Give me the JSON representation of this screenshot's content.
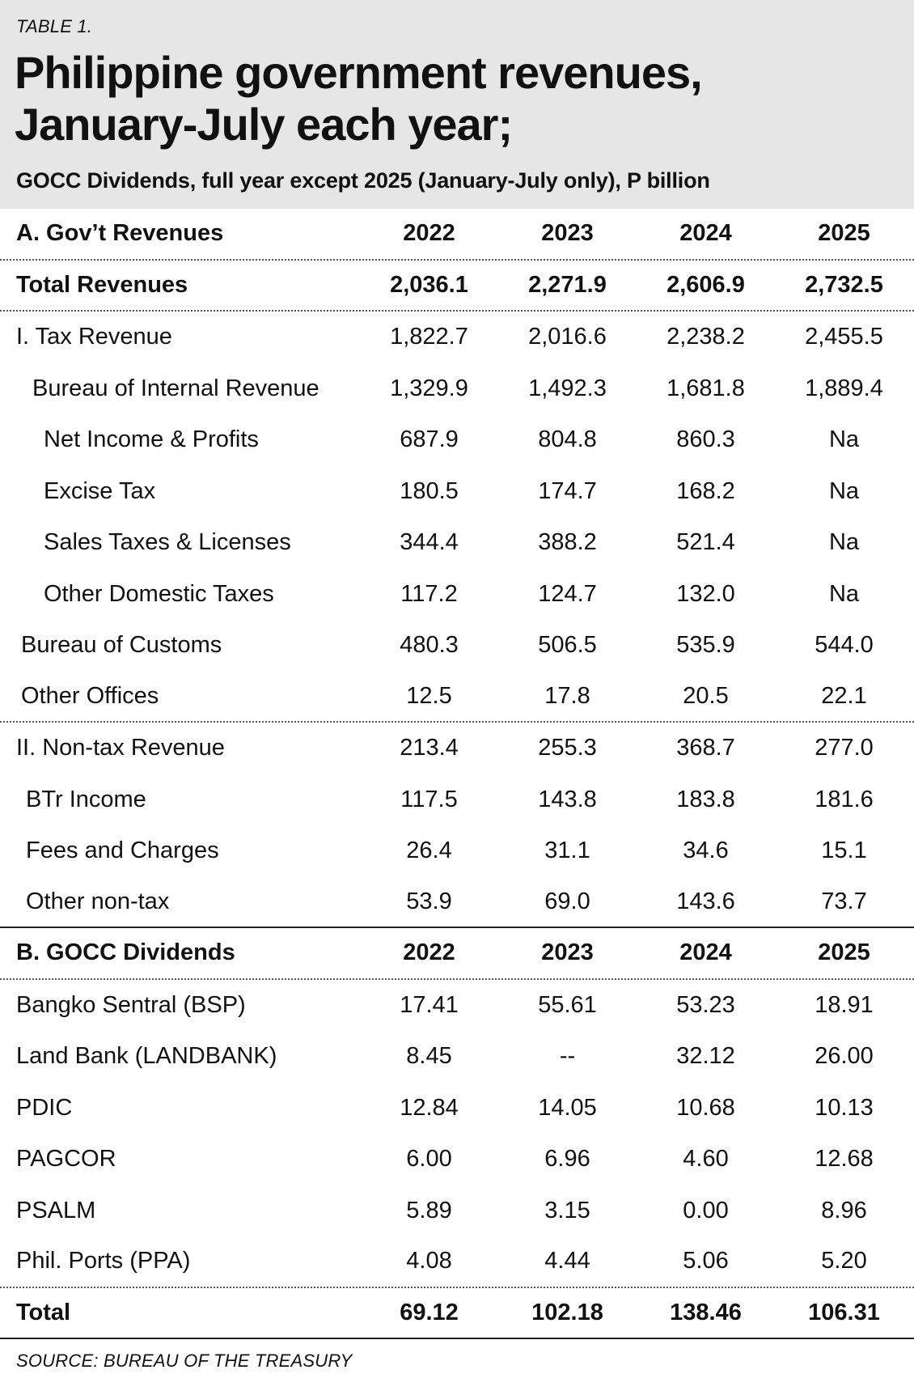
{
  "header": {
    "table_label": "TABLE 1.",
    "title_line1": "Philippine government revenues,",
    "title_line2": "January-July each year;",
    "subtitle": "GOCC Dividends, full year except 2025 (January-July only), P billion"
  },
  "section_a": {
    "label": "A. Gov’t Revenues",
    "years": [
      "2022",
      "2023",
      "2024",
      "2025"
    ],
    "rows": [
      {
        "label": "Total Revenues",
        "values": [
          "2,036.1",
          "2,271.9",
          "2,606.9",
          "2,732.5"
        ]
      },
      {
        "label": "I. Tax Revenue",
        "values": [
          "1,822.7",
          "2,016.6",
          "2,238.2",
          "2,455.5"
        ]
      },
      {
        "label": "Bureau of Internal Revenue",
        "values": [
          "1,329.9",
          "1,492.3",
          "1,681.8",
          "1,889.4"
        ]
      },
      {
        "label": "Net Income & Profits",
        "values": [
          "687.9",
          "804.8",
          "860.3",
          "Na"
        ]
      },
      {
        "label": "Excise Tax",
        "values": [
          "180.5",
          "174.7",
          "168.2",
          "Na"
        ]
      },
      {
        "label": "Sales Taxes & Licenses",
        "values": [
          "344.4",
          "388.2",
          "521.4",
          "Na"
        ]
      },
      {
        "label": "Other Domestic Taxes",
        "values": [
          "117.2",
          "124.7",
          "132.0",
          "Na"
        ]
      },
      {
        "label": "Bureau of Customs",
        "values": [
          "480.3",
          "506.5",
          "535.9",
          "544.0"
        ]
      },
      {
        "label": "Other Offices",
        "values": [
          "12.5",
          "17.8",
          "20.5",
          "22.1"
        ]
      },
      {
        "label": "II. Non-tax Revenue",
        "values": [
          "213.4",
          "255.3",
          "368.7",
          "277.0"
        ]
      },
      {
        "label": "BTr Income",
        "values": [
          "117.5",
          "143.8",
          "183.8",
          "181.6"
        ]
      },
      {
        "label": "Fees and Charges",
        "values": [
          "26.4",
          "31.1",
          "34.6",
          "15.1"
        ]
      },
      {
        "label": "Other non-tax",
        "values": [
          "53.9",
          "69.0",
          "143.6",
          "73.7"
        ]
      }
    ]
  },
  "section_b": {
    "label": "B. GOCC Dividends",
    "years": [
      "2022",
      "2023",
      "2024",
      "2025"
    ],
    "rows": [
      {
        "label": "Bangko Sentral (BSP)",
        "values": [
          "17.41",
          "55.61",
          "53.23",
          "18.91"
        ]
      },
      {
        "label": "Land Bank (LANDBANK)",
        "values": [
          "8.45",
          "--",
          "32.12",
          "26.00"
        ]
      },
      {
        "label": "PDIC",
        "values": [
          "12.84",
          "14.05",
          "10.68",
          "10.13"
        ]
      },
      {
        "label": "PAGCOR",
        "values": [
          "6.00",
          "6.96",
          "4.60",
          "12.68"
        ]
      },
      {
        "label": "PSALM",
        "values": [
          "5.89",
          "3.15",
          "0.00",
          "8.96"
        ]
      },
      {
        "label": "Phil. Ports (PPA)",
        "values": [
          "4.08",
          "4.44",
          "5.06",
          "5.20"
        ]
      },
      {
        "label": "Total",
        "values": [
          "69.12",
          "102.18",
          "138.46",
          "106.31"
        ]
      }
    ]
  },
  "source": "SOURCE: BUREAU OF THE TREASURY"
}
